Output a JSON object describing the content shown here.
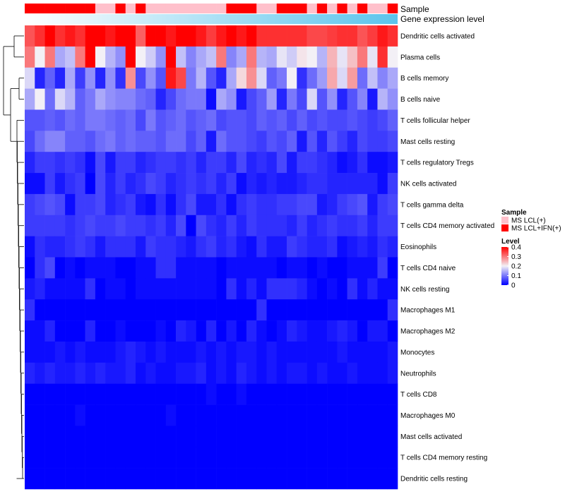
{
  "chart_data": {
    "type": "heatmap",
    "annotation_tracks": [
      {
        "name": "Sample"
      },
      {
        "name": "Gene expression level"
      }
    ],
    "sample_groups": [
      1,
      1,
      1,
      1,
      1,
      1,
      1,
      0,
      0,
      1,
      0,
      1,
      0,
      0,
      0,
      0,
      0,
      0,
      0,
      0,
      1,
      1,
      1,
      0,
      0,
      1,
      1,
      1,
      0,
      1,
      0,
      1,
      0,
      1,
      0,
      0,
      1
    ],
    "expression_gradient": {
      "from": "#ffffff",
      "to": "#5bc4ec"
    },
    "rows": [
      "Dendritic cells activated",
      "Plasma cells",
      "B cells memory",
      "B cells naive",
      "T cells follicular helper",
      "Mast cells resting",
      "T cells regulatory  Tregs",
      "NK cells activated",
      "T cells gamma delta",
      "T cells CD4 memory activated",
      "Eosinophils",
      "T cells CD4 naive",
      "NK cells resting",
      "Macrophages M1",
      "Macrophages M2",
      "Monocytes",
      "Neutrophils",
      "T cells CD8",
      "Macrophages M0",
      "Mast cells activated",
      "T cells CD4 memory resting",
      "Dendritic cells resting"
    ],
    "values": [
      [
        0.33,
        0.36,
        0.4,
        0.36,
        0.38,
        0.36,
        0.4,
        0.4,
        0.38,
        0.4,
        0.4,
        0.32,
        0.4,
        0.4,
        0.38,
        0.4,
        0.4,
        0.38,
        0.35,
        0.38,
        0.4,
        0.38,
        0.4,
        0.36,
        0.36,
        0.36,
        0.36,
        0.36,
        0.34,
        0.34,
        0.35,
        0.36,
        0.36,
        0.33,
        0.35,
        0.38,
        0.36
      ],
      [
        0.3,
        0.2,
        0.3,
        0.14,
        0.16,
        0.3,
        0.4,
        0.2,
        0.15,
        0.12,
        0.4,
        0.2,
        0.17,
        0.12,
        0.4,
        0.16,
        0.11,
        0.14,
        0.16,
        0.3,
        0.11,
        0.14,
        0.3,
        0.15,
        0.14,
        0.19,
        0.17,
        0.21,
        0.2,
        0.15,
        0.25,
        0.19,
        0.24,
        0.3,
        0.19,
        0.36,
        0.2
      ],
      [
        0.18,
        0.03,
        0.08,
        0.03,
        0.14,
        0.05,
        0.12,
        0.03,
        0.12,
        0.04,
        0.28,
        0.06,
        0.12,
        0.07,
        0.38,
        0.34,
        0.1,
        0.15,
        0.07,
        0.03,
        0.14,
        0.22,
        0.28,
        0.18,
        0.08,
        0.1,
        0.2,
        0.04,
        0.09,
        0.13,
        0.26,
        0.18,
        0.27,
        0.09,
        0.16,
        0.11,
        0.14
      ],
      [
        0.14,
        0.2,
        0.09,
        0.18,
        0.15,
        0.08,
        0.1,
        0.14,
        0.12,
        0.11,
        0.11,
        0.09,
        0.08,
        0.03,
        0.06,
        0.09,
        0.1,
        0.1,
        0.01,
        0.14,
        0.12,
        0.02,
        0.06,
        0.08,
        0.13,
        0.03,
        0.1,
        0.06,
        0.18,
        0.07,
        0.12,
        0.03,
        0.07,
        0.11,
        0.02,
        0.15,
        0.12
      ],
      [
        0.07,
        0.07,
        0.08,
        0.07,
        0.09,
        0.08,
        0.1,
        0.1,
        0.09,
        0.08,
        0.09,
        0.06,
        0.1,
        0.07,
        0.08,
        0.09,
        0.07,
        0.08,
        0.09,
        0.06,
        0.07,
        0.07,
        0.06,
        0.08,
        0.07,
        0.08,
        0.06,
        0.08,
        0.06,
        0.07,
        0.06,
        0.06,
        0.07,
        0.06,
        0.05,
        0.06,
        0.08
      ],
      [
        0.06,
        0.09,
        0.11,
        0.11,
        0.08,
        0.08,
        0.07,
        0.09,
        0.1,
        0.08,
        0.09,
        0.08,
        0.08,
        0.07,
        0.09,
        0.09,
        0.06,
        0.08,
        0.02,
        0.09,
        0.07,
        0.07,
        0.06,
        0.05,
        0.07,
        0.06,
        0.08,
        0.02,
        0.07,
        0.03,
        0.07,
        0.05,
        0.03,
        0.06,
        0.05,
        0.05,
        0.06
      ],
      [
        0.03,
        0.05,
        0.05,
        0.04,
        0.05,
        0.04,
        0.01,
        0.06,
        0.02,
        0.05,
        0.05,
        0.03,
        0.04,
        0.05,
        0.05,
        0.04,
        0.05,
        0.03,
        0.05,
        0.05,
        0.03,
        0.06,
        0.03,
        0.04,
        0.03,
        0.06,
        0.02,
        0.05,
        0.05,
        0.04,
        0.03,
        0.01,
        0.02,
        0.04,
        0.01,
        0.01,
        0.02
      ],
      [
        0.01,
        0.01,
        0.05,
        0.02,
        0.04,
        0.05,
        0.0,
        0.06,
        0.03,
        0.05,
        0.03,
        0.04,
        0.06,
        0.05,
        0.03,
        0.04,
        0.05,
        0.04,
        0.05,
        0.03,
        0.05,
        0.01,
        0.03,
        0.02,
        0.03,
        0.02,
        0.02,
        0.03,
        0.04,
        0.04,
        0.03,
        0.03,
        0.03,
        0.03,
        0.03,
        0.01,
        0.05
      ],
      [
        0.05,
        0.06,
        0.07,
        0.06,
        0.01,
        0.05,
        0.05,
        0.06,
        0.03,
        0.04,
        0.05,
        0.02,
        0.01,
        0.04,
        0.01,
        0.04,
        0.06,
        0.02,
        0.02,
        0.04,
        0.01,
        0.04,
        0.05,
        0.04,
        0.04,
        0.05,
        0.05,
        0.06,
        0.06,
        0.02,
        0.03,
        0.05,
        0.06,
        0.07,
        0.02,
        0.05,
        0.06
      ],
      [
        0.05,
        0.05,
        0.05,
        0.05,
        0.04,
        0.05,
        0.06,
        0.05,
        0.05,
        0.06,
        0.05,
        0.05,
        0.04,
        0.05,
        0.03,
        0.06,
        0.0,
        0.06,
        0.04,
        0.03,
        0.05,
        0.03,
        0.05,
        0.04,
        0.04,
        0.04,
        0.03,
        0.05,
        0.03,
        0.04,
        0.05,
        0.04,
        0.04,
        0.05,
        0.03,
        0.05,
        0.05
      ],
      [
        0.01,
        0.04,
        0.03,
        0.03,
        0.04,
        0.05,
        0.04,
        0.02,
        0.04,
        0.04,
        0.04,
        0.02,
        0.05,
        0.04,
        0.04,
        0.03,
        0.02,
        0.04,
        0.05,
        0.03,
        0.04,
        0.02,
        0.01,
        0.04,
        0.02,
        0.02,
        0.05,
        0.04,
        0.03,
        0.03,
        0.04,
        0.01,
        0.02,
        0.03,
        0.02,
        0.04,
        0.03
      ],
      [
        0.0,
        0.04,
        0.06,
        0.0,
        0.01,
        0.0,
        0.01,
        0.01,
        0.01,
        0.0,
        0.0,
        0.01,
        0.01,
        0.04,
        0.04,
        0.01,
        0.01,
        0.01,
        0.01,
        0.0,
        0.01,
        0.01,
        0.01,
        0.01,
        0.01,
        0.0,
        0.01,
        0.01,
        0.0,
        0.01,
        0.0,
        0.0,
        0.01,
        0.01,
        0.01,
        0.05,
        0.0
      ],
      [
        0.02,
        0.03,
        0.01,
        0.01,
        0.01,
        0.01,
        0.04,
        0.0,
        0.01,
        0.01,
        0.0,
        0.01,
        0.01,
        0.01,
        0.01,
        0.01,
        0.01,
        0.01,
        0.01,
        0.0,
        0.04,
        0.01,
        0.03,
        0.01,
        0.04,
        0.04,
        0.04,
        0.03,
        0.01,
        0.0,
        0.01,
        0.0,
        0.04,
        0.01,
        0.03,
        0.01,
        0.01
      ],
      [
        0.04,
        0.0,
        0.0,
        0.0,
        0.0,
        0.0,
        0.0,
        0.0,
        0.0,
        0.0,
        0.0,
        0.0,
        0.0,
        0.0,
        0.0,
        0.0,
        0.0,
        0.0,
        0.0,
        0.0,
        0.0,
        0.0,
        0.0,
        0.04,
        0.0,
        0.0,
        0.0,
        0.0,
        0.0,
        0.0,
        0.0,
        0.0,
        0.0,
        0.0,
        0.0,
        0.0,
        0.04
      ],
      [
        0.01,
        0.01,
        0.03,
        0.0,
        0.0,
        0.0,
        0.03,
        0.0,
        0.0,
        0.01,
        0.0,
        0.0,
        0.0,
        0.01,
        0.0,
        0.03,
        0.02,
        0.0,
        0.03,
        0.0,
        0.02,
        0.0,
        0.03,
        0.01,
        0.0,
        0.01,
        0.03,
        0.02,
        0.01,
        0.01,
        0.02,
        0.03,
        0.02,
        0.0,
        0.02,
        0.02,
        0.0
      ],
      [
        0.01,
        0.01,
        0.01,
        0.02,
        0.01,
        0.02,
        0.01,
        0.01,
        0.01,
        0.02,
        0.03,
        0.02,
        0.01,
        0.02,
        0.01,
        0.01,
        0.01,
        0.02,
        0.01,
        0.02,
        0.01,
        0.02,
        0.02,
        0.01,
        0.02,
        0.01,
        0.01,
        0.01,
        0.01,
        0.01,
        0.01,
        0.02,
        0.01,
        0.01,
        0.01,
        0.01,
        0.02
      ],
      [
        0.03,
        0.02,
        0.03,
        0.02,
        0.02,
        0.03,
        0.02,
        0.03,
        0.02,
        0.02,
        0.03,
        0.01,
        0.02,
        0.01,
        0.01,
        0.02,
        0.02,
        0.03,
        0.01,
        0.02,
        0.01,
        0.03,
        0.02,
        0.01,
        0.02,
        0.01,
        0.02,
        0.02,
        0.01,
        0.02,
        0.01,
        0.01,
        0.02,
        0.01,
        0.01,
        0.01,
        0.02
      ],
      [
        0.0,
        0.0,
        0.0,
        0.0,
        0.0,
        0.0,
        0.0,
        0.0,
        0.0,
        0.0,
        0.0,
        0.0,
        0.0,
        0.0,
        0.0,
        0.0,
        0.0,
        0.0,
        0.01,
        0.0,
        0.0,
        0.01,
        0.0,
        0.0,
        0.0,
        0.0,
        0.0,
        0.0,
        0.0,
        0.0,
        0.0,
        0.0,
        0.0,
        0.0,
        0.0,
        0.0,
        0.0
      ],
      [
        0.0,
        0.0,
        0.0,
        0.0,
        0.0,
        0.01,
        0.0,
        0.0,
        0.0,
        0.0,
        0.0,
        0.0,
        0.0,
        0.0,
        0.01,
        0.0,
        0.0,
        0.0,
        0.0,
        0.0,
        0.0,
        0.0,
        0.0,
        0.0,
        0.0,
        0.0,
        0.0,
        0.0,
        0.0,
        0.0,
        0.0,
        0.0,
        0.0,
        0.0,
        0.0,
        0.0,
        0.0
      ],
      [
        0.0,
        0.0,
        0.0,
        0.0,
        0.0,
        0.0,
        0.0,
        0.0,
        0.0,
        0.0,
        0.0,
        0.0,
        0.0,
        0.0,
        0.0,
        0.0,
        0.0,
        0.0,
        0.0,
        0.0,
        0.0,
        0.0,
        0.0,
        0.0,
        0.0,
        0.0,
        0.0,
        0.0,
        0.0,
        0.0,
        0.0,
        0.0,
        0.0,
        0.0,
        0.0,
        0.0,
        0.0
      ],
      [
        0.0,
        0.0,
        0.0,
        0.0,
        0.0,
        0.0,
        0.0,
        0.0,
        0.0,
        0.0,
        0.0,
        0.0,
        0.0,
        0.0,
        0.0,
        0.0,
        0.0,
        0.0,
        0.0,
        0.0,
        0.0,
        0.0,
        0.0,
        0.0,
        0.0,
        0.0,
        0.0,
        0.0,
        0.0,
        0.0,
        0.0,
        0.0,
        0.0,
        0.0,
        0.0,
        0.0,
        0.0
      ],
      [
        0.0,
        0.0,
        0.0,
        0.0,
        0.0,
        0.0,
        0.0,
        0.0,
        0.0,
        0.0,
        0.0,
        0.0,
        0.0,
        0.0,
        0.0,
        0.0,
        0.0,
        0.0,
        0.0,
        0.0,
        0.0,
        0.0,
        0.0,
        0.0,
        0.0,
        0.0,
        0.0,
        0.0,
        0.0,
        0.0,
        0.0,
        0.0,
        0.0,
        0.0,
        0.0,
        0.0,
        0.0
      ]
    ],
    "color_scale": {
      "min": 0,
      "max": 0.4,
      "stops": [
        {
          "value": 0,
          "color": "#0000ff"
        },
        {
          "value": 0.2,
          "color": "#f3f0f6"
        },
        {
          "value": 0.4,
          "color": "#ff0000"
        }
      ]
    },
    "legend": {
      "sample": {
        "title": "Sample",
        "entries": [
          {
            "label": "MS LCL(+)",
            "color": "#ffc0cb"
          },
          {
            "label": "MS LCL+IFN(+)",
            "color": "#ff0000"
          }
        ]
      },
      "level": {
        "title": "Level",
        "ticks": [
          {
            "value": 0.4,
            "label": "0.4"
          },
          {
            "value": 0.3,
            "label": "0.3"
          },
          {
            "value": 0.2,
            "label": "0.2"
          },
          {
            "value": 0.1,
            "label": "0.1"
          },
          {
            "value": 0,
            "label": "0"
          }
        ]
      }
    },
    "dendrogram": {
      "side": "left",
      "clustered": "rows"
    }
  }
}
